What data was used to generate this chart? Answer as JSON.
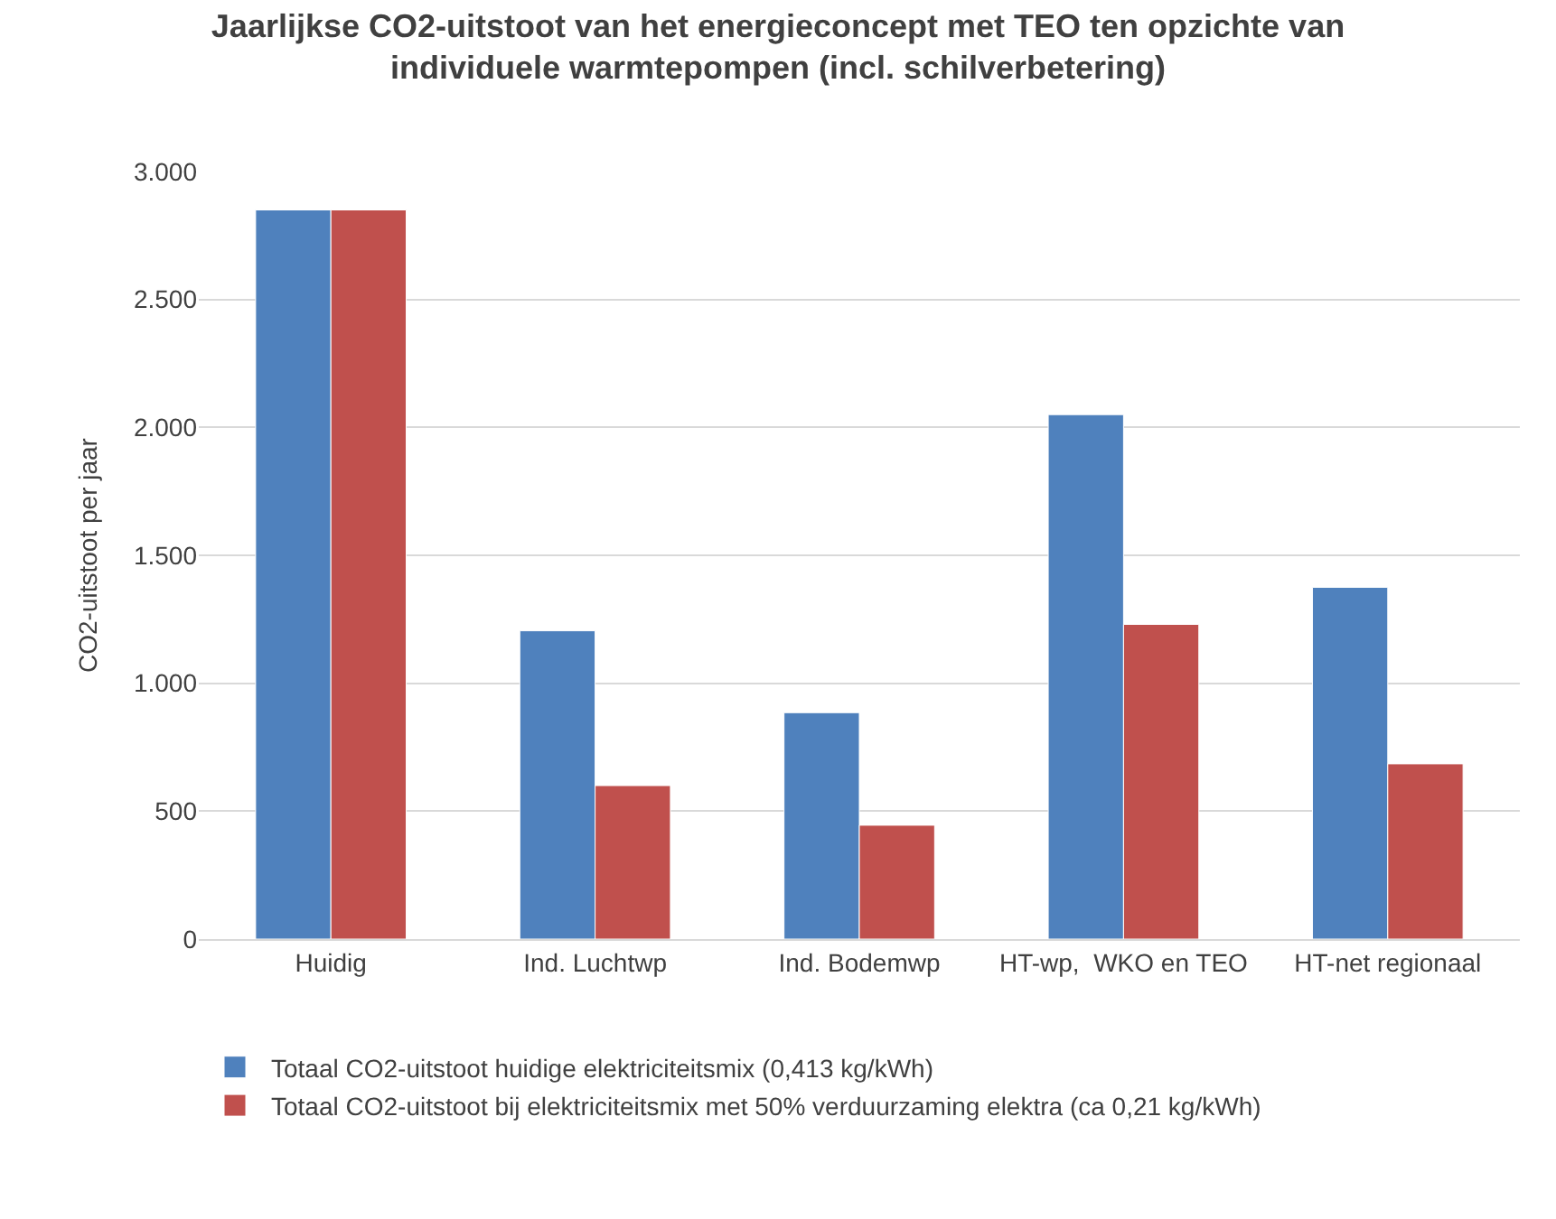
{
  "chart_data": {
    "type": "bar",
    "title": "Jaarlijkse CO2-uitstoot van het energieconcept met TEO ten opzichte van individuele warmtepompen (incl. schilverbetering)",
    "ylabel": "CO2-uitstoot per jaar",
    "categories": [
      "Huidig",
      "Ind. Luchtwp",
      "Ind. Bodemwp",
      "HT-wp,  WKO en TEO",
      "HT-net regionaal"
    ],
    "series": [
      {
        "name": "Totaal CO2-uitstoot huidige elektriciteitsmix (0,413 kg/kWh)",
        "color": "#4f81bd",
        "values": [
          2850,
          1205,
          885,
          2050,
          1375
        ]
      },
      {
        "name": "Totaal CO2-uitstoot bij elektriciteitsmix met 50% verduurzaming elektra (ca 0,21 kg/kWh)",
        "color": "#c0504d",
        "values": [
          2850,
          600,
          445,
          1230,
          685
        ]
      }
    ],
    "ylim": [
      0,
      3000
    ],
    "yticks": [
      {
        "value": 0,
        "label": "0"
      },
      {
        "value": 500,
        "label": "500"
      },
      {
        "value": 1000,
        "label": "1.000"
      },
      {
        "value": 1500,
        "label": "1.500"
      },
      {
        "value": 2000,
        "label": "2.000"
      },
      {
        "value": 2500,
        "label": "2.500"
      },
      {
        "value": 3000,
        "label": "3.000"
      }
    ],
    "grid": "y",
    "legend": "bottom"
  }
}
